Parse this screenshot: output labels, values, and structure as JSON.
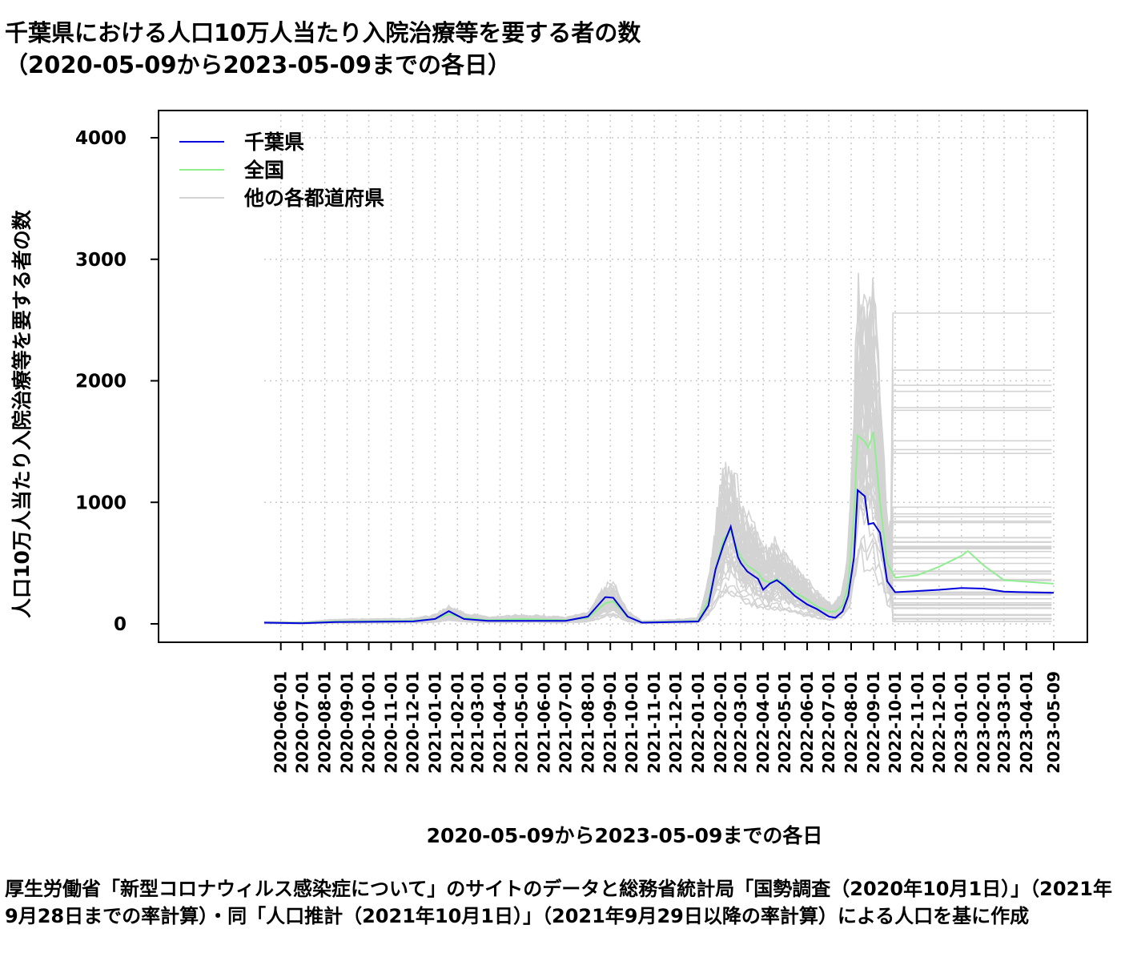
{
  "title_line1": "千葉県における人口10万人当たり入院治療等を要する者の数",
  "title_line2": "（2020-05-09から2023-05-09までの各日）",
  "caption": "厚生労働省「新型コロナウィルス感染症について」のサイトのデータと総務省統計局「国勢調査（2020年10月1日）」（2021年9月28日までの率計算）・同「人口推計（2021年10月1日）」（2021年9月29日以降の率計算）による人口を基に作成",
  "colors": {
    "chiba": "#0000dd",
    "national": "#90ee90",
    "others": "#d3d3d3",
    "grid": "#c8c8c8"
  },
  "chart_data": {
    "type": "line",
    "xlabel": "2020-05-09から2023-05-09までの各日",
    "ylabel": "人口10万人当たり入院治療等を要する者の数",
    "xlim": [
      "2020-05-09",
      "2023-05-09"
    ],
    "ylim": [
      0,
      4150
    ],
    "yticks": [
      0,
      1000,
      2000,
      3000,
      4000
    ],
    "xtick_labels": [
      "2020-06-01",
      "2020-07-01",
      "2020-08-01",
      "2020-09-01",
      "2020-10-01",
      "2020-11-01",
      "2020-12-01",
      "2021-01-01",
      "2021-02-01",
      "2021-03-01",
      "2021-04-01",
      "2021-05-01",
      "2021-06-01",
      "2021-07-01",
      "2021-08-01",
      "2021-09-01",
      "2021-10-01",
      "2021-11-01",
      "2021-12-01",
      "2022-01-01",
      "2022-02-01",
      "2022-03-01",
      "2022-04-01",
      "2022-05-01",
      "2022-06-01",
      "2022-07-01",
      "2022-08-01",
      "2022-09-01",
      "2022-10-01",
      "2022-11-01",
      "2022-12-01",
      "2023-01-01",
      "2023-02-01",
      "2023-03-01",
      "2023-04-01",
      "2023-05-09"
    ],
    "grid": true,
    "legend_position": "top-left",
    "series": [
      {
        "name": "千葉県",
        "color": "#0000dd",
        "x": [
          "2020-05-09",
          "2020-07-01",
          "2020-08-15",
          "2020-12-01",
          "2021-01-01",
          "2021-01-20",
          "2021-02-10",
          "2021-03-15",
          "2021-05-01",
          "2021-07-01",
          "2021-08-01",
          "2021-08-25",
          "2021-09-05",
          "2021-09-25",
          "2021-10-15",
          "2022-01-01",
          "2022-01-15",
          "2022-01-25",
          "2022-02-05",
          "2022-02-15",
          "2022-02-25",
          "2022-03-01",
          "2022-03-10",
          "2022-03-25",
          "2022-04-01",
          "2022-04-10",
          "2022-04-20",
          "2022-05-01",
          "2022-05-15",
          "2022-06-01",
          "2022-06-15",
          "2022-07-01",
          "2022-07-10",
          "2022-07-20",
          "2022-07-28",
          "2022-08-05",
          "2022-08-10",
          "2022-08-20",
          "2022-08-25",
          "2022-09-01",
          "2022-09-10",
          "2022-09-20",
          "2022-10-01",
          "2022-11-01",
          "2022-12-01",
          "2023-01-01",
          "2023-02-01",
          "2023-03-01",
          "2023-05-09"
        ],
        "y": [
          10,
          5,
          15,
          20,
          40,
          105,
          40,
          25,
          25,
          25,
          60,
          220,
          215,
          60,
          10,
          20,
          150,
          450,
          650,
          800,
          550,
          500,
          430,
          370,
          280,
          330,
          360,
          310,
          230,
          160,
          120,
          60,
          50,
          100,
          230,
          550,
          1100,
          1050,
          820,
          830,
          750,
          350,
          260,
          270,
          280,
          295,
          290,
          265,
          255
        ]
      },
      {
        "name": "全国",
        "color": "#90ee90",
        "x": [
          "2020-05-09",
          "2020-07-01",
          "2020-08-15",
          "2020-12-01",
          "2021-01-01",
          "2021-01-20",
          "2021-02-10",
          "2021-03-15",
          "2021-05-01",
          "2021-07-01",
          "2021-08-01",
          "2021-08-25",
          "2021-09-05",
          "2021-09-25",
          "2021-10-15",
          "2022-01-01",
          "2022-01-15",
          "2022-01-25",
          "2022-02-05",
          "2022-02-15",
          "2022-02-25",
          "2022-03-01",
          "2022-03-10",
          "2022-03-25",
          "2022-04-01",
          "2022-04-10",
          "2022-04-20",
          "2022-05-01",
          "2022-05-15",
          "2022-06-01",
          "2022-06-15",
          "2022-07-01",
          "2022-07-10",
          "2022-07-20",
          "2022-07-28",
          "2022-08-05",
          "2022-08-10",
          "2022-08-20",
          "2022-08-25",
          "2022-09-01",
          "2022-09-10",
          "2022-09-20",
          "2022-10-01",
          "2022-11-01",
          "2022-12-01",
          "2023-01-01",
          "2023-01-10",
          "2023-02-01",
          "2023-03-01",
          "2023-05-09"
        ],
        "y": [
          10,
          8,
          20,
          25,
          40,
          80,
          50,
          30,
          40,
          30,
          50,
          170,
          185,
          60,
          12,
          25,
          200,
          450,
          700,
          760,
          600,
          550,
          480,
          420,
          360,
          340,
          370,
          320,
          260,
          200,
          140,
          100,
          100,
          150,
          320,
          900,
          1550,
          1500,
          1450,
          1580,
          1000,
          500,
          380,
          400,
          470,
          560,
          600,
          480,
          360,
          330
        ]
      },
      {
        "name": "他の各都道府県",
        "color": "#d3d3d3"
      }
    ]
  }
}
